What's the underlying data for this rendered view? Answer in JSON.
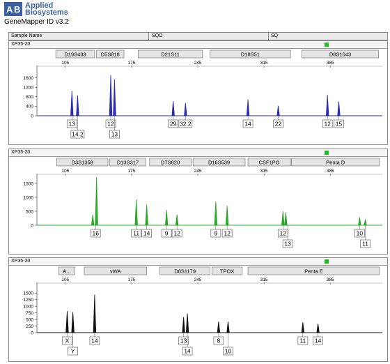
{
  "app": {
    "logo_lines": [
      "Applied",
      "Biosystems"
    ],
    "title": "GeneMapper ID v3.2"
  },
  "columns": [
    "Sample Name",
    "SQO",
    "SQ"
  ],
  "colors": {
    "blue": "#2b2bb5",
    "green": "#2aa82a",
    "black": "#111111",
    "status": "#22bb22",
    "logo": "#3b5fa5"
  },
  "x_range": [
    75,
    440
  ],
  "panels": [
    {
      "title": "XP35-20",
      "dye": "blue",
      "y_range": [
        0,
        2000
      ],
      "y_ticks": [
        0,
        400,
        800,
        1200,
        1600
      ],
      "x_ticks": [
        105,
        175,
        245,
        315,
        385
      ],
      "loci": [
        {
          "name": "D19S433",
          "start": 95,
          "end": 136
        },
        {
          "name": "D5S818",
          "start": 138,
          "end": 167
        },
        {
          "name": "D21S11",
          "start": 182,
          "end": 250
        },
        {
          "name": "D18S51",
          "start": 258,
          "end": 343
        },
        {
          "name": "D8S1043",
          "start": 355,
          "end": 436
        }
      ],
      "peaks": [
        {
          "x": 112,
          "h": 1050
        },
        {
          "x": 118,
          "h": 860
        },
        {
          "x": 153,
          "h": 1720
        },
        {
          "x": 157,
          "h": 1530
        },
        {
          "x": 219,
          "h": 620
        },
        {
          "x": 232,
          "h": 540
        },
        {
          "x": 298,
          "h": 690
        },
        {
          "x": 330,
          "h": 420
        },
        {
          "x": 382,
          "h": 890
        },
        {
          "x": 394,
          "h": 600
        }
      ],
      "alleles": [
        {
          "x": 112,
          "label": "13",
          "row": 0
        },
        {
          "x": 118,
          "label": "14.2",
          "row": 1
        },
        {
          "x": 153,
          "label": "12",
          "row": 0
        },
        {
          "x": 157,
          "label": "13",
          "row": 1
        },
        {
          "x": 219,
          "label": "29",
          "row": 0
        },
        {
          "x": 232,
          "label": "32.2",
          "row": 0
        },
        {
          "x": 298,
          "label": "14",
          "row": 0
        },
        {
          "x": 330,
          "label": "22",
          "row": 0
        },
        {
          "x": 382,
          "label": "12",
          "row": 0
        },
        {
          "x": 394,
          "label": "15",
          "row": 0
        }
      ]
    },
    {
      "title": "XP35-20",
      "dye": "green",
      "y_range": [
        0,
        1750
      ],
      "y_ticks": [
        0,
        500,
        1000,
        1500
      ],
      "x_ticks": [
        105,
        175,
        245,
        315,
        385
      ],
      "loci": [
        {
          "name": "D3S1358",
          "start": 96,
          "end": 150
        },
        {
          "name": "D13S317",
          "start": 152,
          "end": 190
        },
        {
          "name": "D7S820",
          "start": 194,
          "end": 238
        },
        {
          "name": "D16S539",
          "start": 240,
          "end": 295
        },
        {
          "name": "CSF1PO",
          "start": 298,
          "end": 343
        },
        {
          "name": "Penta D",
          "start": 344,
          "end": 437
        }
      ],
      "peaks": [
        {
          "x": 138,
          "h": 1720
        },
        {
          "x": 134,
          "h": 380
        },
        {
          "x": 180,
          "h": 920
        },
        {
          "x": 191,
          "h": 740
        },
        {
          "x": 212,
          "h": 550
        },
        {
          "x": 223,
          "h": 380
        },
        {
          "x": 264,
          "h": 860
        },
        {
          "x": 276,
          "h": 700
        },
        {
          "x": 335,
          "h": 500
        },
        {
          "x": 338,
          "h": 460
        },
        {
          "x": 416,
          "h": 290
        },
        {
          "x": 422,
          "h": 210
        }
      ],
      "alleles": [
        {
          "x": 137,
          "label": "16",
          "row": 0
        },
        {
          "x": 180,
          "label": "11",
          "row": 0
        },
        {
          "x": 191,
          "label": "14",
          "row": 0
        },
        {
          "x": 212,
          "label": "9",
          "row": 0
        },
        {
          "x": 223,
          "label": "12",
          "row": 0
        },
        {
          "x": 264,
          "label": "9",
          "row": 0
        },
        {
          "x": 276,
          "label": "12",
          "row": 0
        },
        {
          "x": 335,
          "label": "12",
          "row": 0
        },
        {
          "x": 340,
          "label": "13",
          "row": 1
        },
        {
          "x": 416,
          "label": "10",
          "row": 0
        },
        {
          "x": 422,
          "label": "11",
          "row": 1
        }
      ]
    },
    {
      "title": "XP35-20",
      "dye": "black",
      "y_range": [
        0,
        1800
      ],
      "y_ticks": [
        0,
        250,
        500,
        750,
        1000,
        1250,
        1500
      ],
      "x_ticks": [
        105,
        175,
        245,
        315,
        385
      ],
      "loci": [
        {
          "name": "A...",
          "start": 98,
          "end": 115
        },
        {
          "name": "vWA",
          "start": 125,
          "end": 191
        },
        {
          "name": "D8S1179",
          "start": 205,
          "end": 258
        },
        {
          "name": "TPOX",
          "start": 260,
          "end": 292
        },
        {
          "name": "Penta E",
          "start": 298,
          "end": 437
        }
      ],
      "peaks": [
        {
          "x": 107,
          "h": 820
        },
        {
          "x": 113,
          "h": 780
        },
        {
          "x": 136,
          "h": 1440
        },
        {
          "x": 230,
          "h": 590
        },
        {
          "x": 234,
          "h": 730
        },
        {
          "x": 267,
          "h": 420
        },
        {
          "x": 277,
          "h": 420
        },
        {
          "x": 356,
          "h": 390
        },
        {
          "x": 372,
          "h": 340
        }
      ],
      "alleles": [
        {
          "x": 107,
          "label": "X",
          "row": 0
        },
        {
          "x": 113,
          "label": "Y",
          "row": 1
        },
        {
          "x": 136,
          "label": "14",
          "row": 0
        },
        {
          "x": 230,
          "label": "13",
          "row": 0
        },
        {
          "x": 234,
          "label": "14",
          "row": 1
        },
        {
          "x": 267,
          "label": "8",
          "row": 0
        },
        {
          "x": 277,
          "label": "10",
          "row": 1
        },
        {
          "x": 356,
          "label": "11",
          "row": 0
        },
        {
          "x": 372,
          "label": "14",
          "row": 0
        }
      ]
    }
  ]
}
